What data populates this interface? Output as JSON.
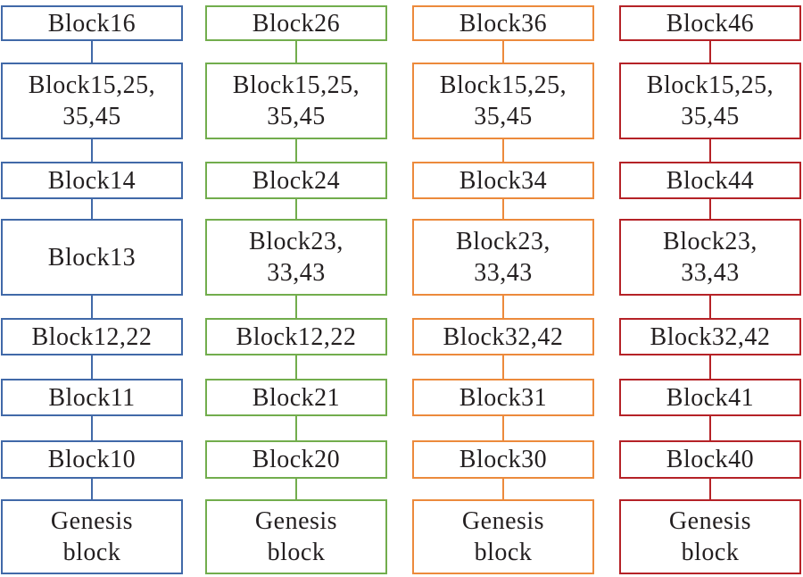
{
  "chains": [
    {
      "color": "#4169a8",
      "blocks": [
        "Block16",
        "Block15,25,\n35,45",
        "Block14",
        "Block13",
        "Block12,22",
        "Block11",
        "Block10",
        "Genesis\nblock"
      ]
    },
    {
      "color": "#72ad4d",
      "blocks": [
        "Block26",
        "Block15,25,\n35,45",
        "Block24",
        "Block23,\n33,43",
        "Block12,22",
        "Block21",
        "Block20",
        "Genesis\nblock"
      ]
    },
    {
      "color": "#ec8a3c",
      "blocks": [
        "Block36",
        "Block15,25,\n35,45",
        "Block34",
        "Block23,\n33,43",
        "Block32,42",
        "Block31",
        "Block30",
        "Genesis\nblock"
      ]
    },
    {
      "color": "#b52227",
      "blocks": [
        "Block46",
        "Block15,25,\n35,45",
        "Block44",
        "Block23,\n33,43",
        "Block32,42",
        "Block41",
        "Block40",
        "Genesis\nblock"
      ]
    }
  ]
}
